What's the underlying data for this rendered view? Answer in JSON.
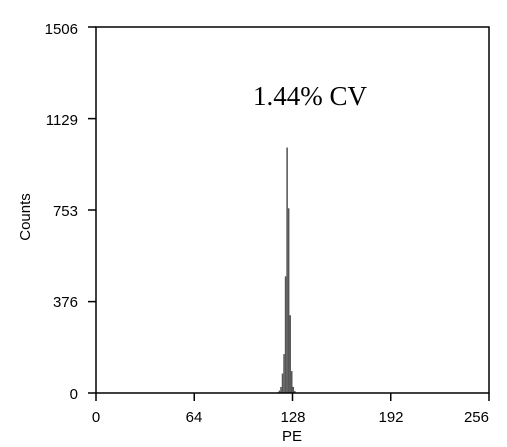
{
  "chart_data": {
    "type": "histogram",
    "title": "",
    "annotation": "1.44% CV",
    "xlabel": "PE",
    "ylabel": "Counts",
    "xlim": [
      0,
      256
    ],
    "ylim": [
      0,
      1506
    ],
    "x_ticks": [
      "0",
      "64",
      "128",
      "192",
      "256"
    ],
    "y_ticks": [
      "0",
      "376",
      "753",
      "1129",
      "1506"
    ],
    "grid": false,
    "series": [
      {
        "bins": [
          118,
          119,
          120,
          121,
          122,
          123,
          124,
          125,
          126,
          127,
          128,
          129,
          130
        ],
        "values": [
          3,
          10,
          25,
          80,
          160,
          480,
          1010,
          760,
          320,
          90,
          25,
          8,
          2
        ]
      }
    ],
    "colors": {
      "bars": "#555555",
      "axis": "#000000",
      "background": "#ffffff"
    }
  }
}
